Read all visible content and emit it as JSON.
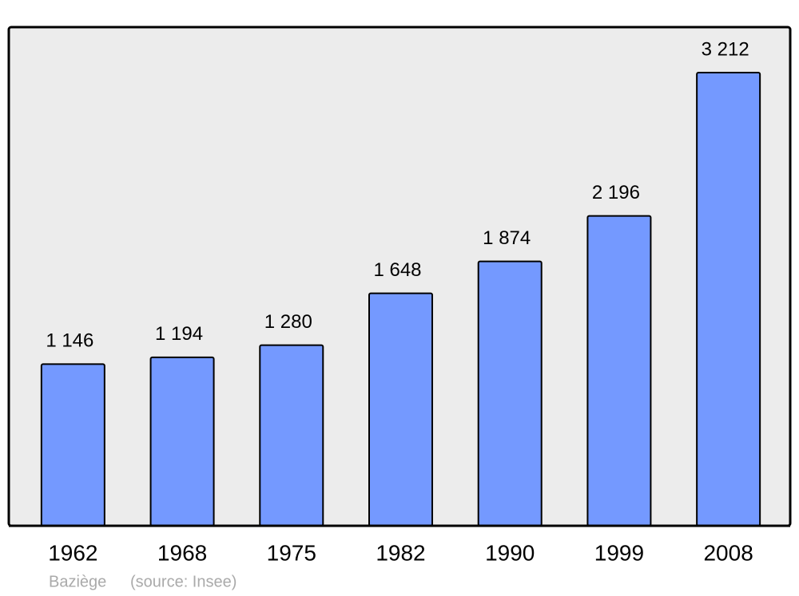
{
  "chart_data": {
    "type": "bar",
    "categories": [
      "1962",
      "1968",
      "1975",
      "1982",
      "1990",
      "1999",
      "2008"
    ],
    "values": [
      1146,
      1194,
      1280,
      1648,
      1874,
      2196,
      3212
    ],
    "value_labels": [
      "1 146",
      "1 194",
      "1 280",
      "1 648",
      "1 874",
      "2 196",
      "3 212"
    ],
    "color": "#7499ff",
    "place": "Baziège",
    "source": "(source: Insee)"
  }
}
